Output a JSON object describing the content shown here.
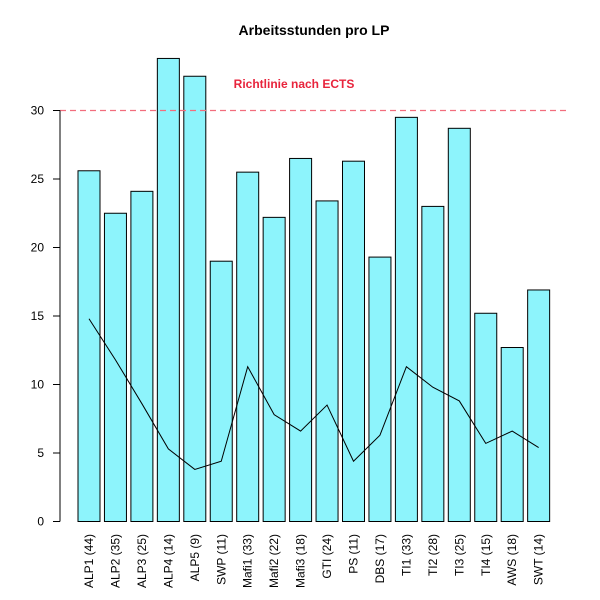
{
  "chart_data": {
    "type": "bar",
    "title": "Arbeitsstunden pro LP",
    "categories": [
      "ALP1 (44)",
      "ALP2 (35)",
      "ALP3 (25)",
      "ALP4 (14)",
      "ALP5 (9)",
      "SWP (11)",
      "Mafi1 (33)",
      "Mafi2 (22)",
      "Mafi3 (18)",
      "GTI (24)",
      "PS (11)",
      "DBS (17)",
      "TI1 (33)",
      "TI2 (28)",
      "TI3 (25)",
      "TI4 (15)",
      "AWS (18)",
      "SWT (14)"
    ],
    "series": [
      {
        "values": [
          25.6,
          22.5,
          24.1,
          33.8,
          32.5,
          19.0,
          25.5,
          22.2,
          26.5,
          23.4,
          26.3,
          19.3,
          29.5,
          23.0,
          28.7,
          15.2,
          12.7,
          16.9
        ]
      },
      {
        "type": "line",
        "values": [
          14.8,
          11.8,
          8.6,
          5.3,
          3.8,
          4.4,
          11.3,
          7.8,
          6.6,
          8.5,
          4.4,
          6.3,
          11.3,
          9.8,
          8.8,
          5.7,
          6.6,
          5.4
        ]
      }
    ],
    "reference_line": {
      "y": 30,
      "label": "Richtlinie nach ECTS",
      "color": "#f26d7d"
    },
    "ylim": [
      0,
      34
    ],
    "yticks": [
      0,
      5,
      10,
      15,
      20,
      25,
      30
    ],
    "bar_color": "#8df4fc",
    "xlabel": "",
    "ylabel": "",
    "grid": false
  }
}
